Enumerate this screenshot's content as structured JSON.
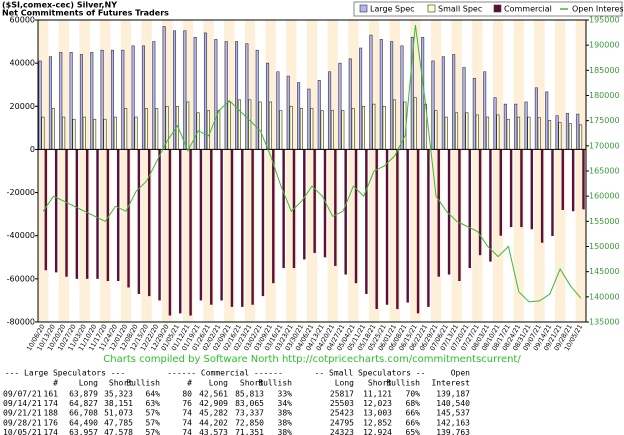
{
  "chart_data": {
    "type": "bar",
    "title": "($SI,comex-cec) Silver,NY",
    "subtitle": "Net Commitments of Futures Traders",
    "categories": [
      "10/06/20",
      "10/13/20",
      "10/20/20",
      "10/27/20",
      "11/03/20",
      "11/10/20",
      "11/17/20",
      "11/24/20",
      "12/01/20",
      "12/08/20",
      "12/15/20",
      "12/22/20",
      "12/29/20",
      "01/05/21",
      "01/12/21",
      "01/19/21",
      "01/26/21",
      "02/02/21",
      "02/09/21",
      "02/16/21",
      "02/23/21",
      "03/02/21",
      "03/09/21",
      "03/16/21",
      "03/23/21",
      "03/30/21",
      "04/06/21",
      "04/13/21",
      "04/20/21",
      "04/27/21",
      "05/04/21",
      "05/11/21",
      "05/18/21",
      "05/25/21",
      "06/01/21",
      "06/08/21",
      "06/15/21",
      "06/22/21",
      "06/29/21",
      "07/06/21",
      "07/13/21",
      "07/20/21",
      "07/27/21",
      "08/03/21",
      "08/10/21",
      "08/17/21",
      "08/24/21",
      "08/31/21",
      "09/07/21",
      "09/14/21",
      "09/21/21",
      "09/28/21",
      "10/05/21"
    ],
    "series": [
      {
        "name": "Large Spec",
        "color": "#b4b4f4",
        "values": [
          41000,
          43000,
          45000,
          45000,
          44000,
          45000,
          46000,
          46000,
          46000,
          48000,
          48000,
          50000,
          57000,
          55000,
          55000,
          52000,
          54000,
          51000,
          50000,
          50000,
          49000,
          46000,
          40000,
          36000,
          34000,
          31000,
          28000,
          32000,
          36000,
          40000,
          42000,
          47000,
          53000,
          51000,
          50000,
          48000,
          52000,
          52000,
          41000,
          43000,
          44000,
          38000,
          33000,
          36000,
          24000,
          21000,
          21000,
          22000,
          28556,
          26676,
          15635,
          16705,
          16379
        ]
      },
      {
        "name": "Small Spec",
        "color": "#ffffc8",
        "values": [
          15000,
          19000,
          15000,
          14000,
          15000,
          14000,
          14000,
          15000,
          19000,
          15000,
          19000,
          19000,
          20000,
          20000,
          22000,
          17000,
          18000,
          18000,
          22000,
          23000,
          23000,
          22000,
          22000,
          18000,
          20000,
          19000,
          19000,
          18000,
          18000,
          18000,
          19000,
          20000,
          21000,
          20000,
          23000,
          22000,
          24000,
          21000,
          18000,
          15000,
          17000,
          17000,
          16000,
          15000,
          16000,
          14000,
          15000,
          15000,
          14696,
          13480,
          12420,
          11943,
          11399
        ]
      },
      {
        "name": "Commercial",
        "color": "#5c1038",
        "values": [
          -56000,
          -57000,
          -59000,
          -60000,
          -60000,
          -60000,
          -61000,
          -61000,
          -64000,
          -67000,
          -68000,
          -70000,
          -77000,
          -76000,
          -77000,
          -70000,
          -72000,
          -70000,
          -73000,
          -73000,
          -72000,
          -68000,
          -62000,
          -55000,
          -55000,
          -51000,
          -48000,
          -50000,
          -54000,
          -58000,
          -62000,
          -67000,
          -74000,
          -72000,
          -74000,
          -71000,
          -76000,
          -73000,
          -59000,
          -58000,
          -61000,
          -55000,
          -49000,
          -52000,
          -40000,
          -36000,
          -36000,
          -37000,
          -43252,
          -40156,
          -28055,
          -28648,
          -27778
        ]
      },
      {
        "name": "Open Interest",
        "color": "#3cb83c",
        "axis": "y2",
        "values": [
          157000,
          160000,
          159000,
          158000,
          157000,
          156000,
          155000,
          158000,
          157000,
          161000,
          163000,
          167000,
          171000,
          174000,
          169000,
          173000,
          172000,
          177000,
          179000,
          177000,
          175000,
          173000,
          168000,
          162000,
          157000,
          159000,
          162000,
          160000,
          156000,
          157000,
          162000,
          160000,
          165000,
          166000,
          168000,
          172000,
          194000,
          178000,
          160000,
          157000,
          155000,
          154000,
          153000,
          150000,
          148000,
          150000,
          141000,
          139000,
          139187,
          140540,
          145537,
          142163,
          139763
        ]
      }
    ],
    "ylim": [
      -80000,
      60000
    ],
    "yticks": [
      -80000,
      -60000,
      -40000,
      -20000,
      0,
      20000,
      40000,
      60000
    ],
    "y2lim": [
      135000,
      195000
    ],
    "y2ticks": [
      135000,
      140000,
      145000,
      150000,
      155000,
      160000,
      165000,
      170000,
      175000,
      180000,
      185000,
      190000,
      195000
    ],
    "legend": "top-right",
    "footer": "Charts compiled by Software North  http://cotpricecharts.com/commitmentscurrent/"
  },
  "table": {
    "headers": [
      [
        "--- Large Speculators ---",
        "------ Commercial ------",
        "-- Small Speculators --",
        "Open"
      ],
      [
        "#",
        "Long",
        "Short",
        "Bullish",
        "#",
        "Long",
        "Short",
        "Bullish",
        "Long",
        "Short",
        "Bullish",
        "Interest"
      ]
    ],
    "rows": [
      [
        "09/07/21",
        "161",
        "63,879",
        "35,323",
        "64%",
        "80",
        "42,561",
        "85,813",
        "33%",
        "25817",
        "11,121",
        "70%",
        "139,187"
      ],
      [
        "09/14/21",
        "174",
        "64,827",
        "38,151",
        "63%",
        "76",
        "42,909",
        "83,065",
        "34%",
        "25503",
        "12,023",
        "68%",
        "140,540"
      ],
      [
        "09/21/21",
        "188",
        "66,708",
        "51,073",
        "57%",
        "74",
        "45,282",
        "73,337",
        "38%",
        "25423",
        "13,003",
        "66%",
        "145,537"
      ],
      [
        "09/28/21",
        "176",
        "64,490",
        "47,785",
        "57%",
        "74",
        "44,202",
        "72,850",
        "38%",
        "24795",
        "12,852",
        "66%",
        "142,163"
      ],
      [
        "10/05/21",
        "174",
        "63,957",
        "47,578",
        "57%",
        "74",
        "43,573",
        "71,351",
        "38%",
        "24323",
        "12,924",
        "65%",
        "139,763"
      ]
    ]
  }
}
